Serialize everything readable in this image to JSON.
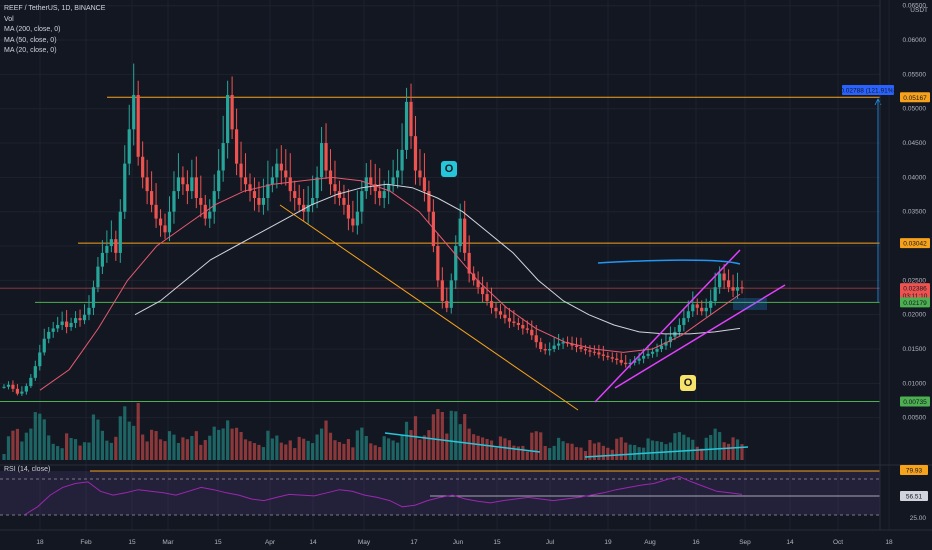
{
  "legend": {
    "symbol": "REEF / TetherUS, 1D, BINANCE",
    "vol": "Vol",
    "ma200": "MA (200, close, 0)",
    "ma50": "MA (50, close, 0)",
    "ma20": "MA (20, close, 0)",
    "rsi": "RSI (14, close)"
  },
  "snapshot_badges": [
    "O",
    "O"
  ],
  "colors": {
    "background": "#131722",
    "up": "#26a69a",
    "down": "#ef5350",
    "grid": "#1e222d",
    "axis_text": "#b2b5be",
    "orange_line": "#f7a21b",
    "green_line": "#4caf50",
    "ma200": "#d1d4dc",
    "ma50": "#e65a6e",
    "pink_trend": "#e040fb",
    "blue_line": "#2196f3",
    "cyan_line": "#26c6da",
    "rsi_line": "#9c27b0"
  },
  "chart_data": {
    "type": "candlestick",
    "title": "REEF / TetherUS, 1D, BINANCE",
    "price_axis_unit": "USDT",
    "price_ticks": [
      "0.06500",
      "0.06000",
      "0.05500",
      "0.05000",
      "0.04500",
      "0.04000",
      "0.03500",
      "0.03000",
      "0.02500",
      "0.02000",
      "0.01500",
      "0.01000",
      "0.00500"
    ],
    "price_tick_values": [
      0.065,
      0.06,
      0.055,
      0.05,
      0.045,
      0.04,
      0.035,
      0.03,
      0.025,
      0.02,
      0.015,
      0.01,
      0.005
    ],
    "date_ticks": [
      "18",
      "Feb",
      "15",
      "Mar",
      "15",
      "Apr",
      "14",
      "May",
      "17",
      "Jun",
      "15",
      "Jul",
      "19",
      "Aug",
      "16",
      "Sep",
      "14",
      "Oct",
      "18"
    ],
    "rsi_ticks": [
      "25.00"
    ],
    "price_labels": [
      {
        "text": "0.02788 (121.91%)",
        "value": 0.0525,
        "color": "#2962ff"
      },
      {
        "text": "0.05167",
        "value": 0.05167,
        "color": "#f7a21b"
      },
      {
        "text": "0.03042",
        "value": 0.03042,
        "color": "#f7a21b"
      },
      {
        "text": "0.02386",
        "value": 0.02386,
        "color": "#ef5350"
      },
      {
        "text": "03:11:10",
        "value": 0.0228,
        "color": "#ef5350"
      },
      {
        "text": "0.02179",
        "value": 0.02179,
        "color": "#4caf50"
      },
      {
        "text": "0.00735",
        "value": 0.00735,
        "color": "#4caf50"
      }
    ],
    "rsi_labels": [
      {
        "text": "79.93",
        "value": 79.93,
        "color": "#f7a21b"
      },
      {
        "text": "56.51",
        "value": 56.51,
        "color": "#d1d4dc"
      }
    ],
    "horizontal_levels": [
      {
        "value": 0.05167,
        "color": "#f7a21b"
      },
      {
        "value": 0.03042,
        "color": "#f7a21b"
      },
      {
        "value": 0.02386,
        "color": "#ef5350"
      },
      {
        "value": 0.02179,
        "color": "#4caf50"
      },
      {
        "value": 0.00735,
        "color": "#4caf50"
      }
    ],
    "series": [
      {
        "name": "Close",
        "values": [
          0.0095,
          0.0098,
          0.0092,
          0.0085,
          0.0088,
          0.0096,
          0.0108,
          0.0125,
          0.0145,
          0.0165,
          0.0175,
          0.018,
          0.0185,
          0.019,
          0.0182,
          0.0188,
          0.0195,
          0.0192,
          0.02,
          0.021,
          0.024,
          0.027,
          0.029,
          0.03,
          0.031,
          0.029,
          0.035,
          0.042,
          0.047,
          0.052,
          0.043,
          0.04,
          0.038,
          0.036,
          0.034,
          0.033,
          0.032,
          0.035,
          0.038,
          0.04,
          0.039,
          0.038,
          0.04,
          0.037,
          0.036,
          0.034,
          0.035,
          0.038,
          0.041,
          0.045,
          0.052,
          0.047,
          0.042,
          0.04,
          0.039,
          0.038,
          0.037,
          0.036,
          0.037,
          0.039,
          0.04,
          0.042,
          0.041,
          0.04,
          0.038,
          0.037,
          0.036,
          0.035,
          0.036,
          0.037,
          0.04,
          0.045,
          0.041,
          0.039,
          0.038,
          0.037,
          0.036,
          0.034,
          0.033,
          0.035,
          0.038,
          0.04,
          0.039,
          0.038,
          0.037,
          0.038,
          0.039,
          0.04,
          0.041,
          0.044,
          0.051,
          0.046,
          0.041,
          0.04,
          0.038,
          0.035,
          0.03,
          0.025,
          0.022,
          0.021,
          0.025,
          0.03,
          0.034,
          0.029,
          0.026,
          0.025,
          0.024,
          0.023,
          0.022,
          0.021,
          0.0205,
          0.02,
          0.0195,
          0.019,
          0.0188,
          0.0185,
          0.018,
          0.0178,
          0.017,
          0.016,
          0.015,
          0.0148,
          0.015,
          0.0155,
          0.0158,
          0.016,
          0.0158,
          0.0155,
          0.0153,
          0.015,
          0.0148,
          0.0146,
          0.0145,
          0.0142,
          0.014,
          0.0138,
          0.0136,
          0.0134,
          0.013,
          0.0128,
          0.013,
          0.0133,
          0.0136,
          0.014,
          0.0143,
          0.0146,
          0.015,
          0.0155,
          0.016,
          0.0168,
          0.0175,
          0.0185,
          0.0195,
          0.0205,
          0.0215,
          0.021,
          0.0205,
          0.021,
          0.022,
          0.024,
          0.026,
          0.025,
          0.024,
          0.0235,
          0.024,
          0.0238
        ]
      },
      {
        "name": "MA (200, close, 0)",
        "values": [
          0.02,
          0.022,
          0.025,
          0.028,
          0.03,
          0.032,
          0.034,
          0.036,
          0.0375,
          0.0385,
          0.039,
          0.0385,
          0.037,
          0.035,
          0.032,
          0.029,
          0.025,
          0.022,
          0.02,
          0.0185,
          0.0175,
          0.0172,
          0.0172,
          0.0175,
          0.018
        ]
      },
      {
        "name": "MA (50, close, 0)",
        "values": [
          0.009,
          0.012,
          0.018,
          0.025,
          0.03,
          0.033,
          0.036,
          0.038,
          0.039,
          0.0395,
          0.04,
          0.0395,
          0.038,
          0.035,
          0.03,
          0.025,
          0.021,
          0.018,
          0.016,
          0.015,
          0.0145,
          0.015,
          0.017,
          0.02,
          0.023
        ]
      },
      {
        "name": "RSI (14, close)",
        "values": [
          30,
          40,
          55,
          65,
          70,
          72,
          60,
          55,
          58,
          62,
          60,
          58,
          55,
          60,
          65,
          62,
          58,
          55,
          50,
          48,
          52,
          56,
          55,
          54,
          58,
          62,
          60,
          55,
          52,
          48,
          40,
          42,
          48,
          52,
          55,
          50,
          47,
          45,
          48,
          50,
          52,
          50,
          48,
          50,
          52,
          55,
          58,
          62,
          65,
          68,
          70,
          75,
          79,
          72,
          66,
          60,
          58,
          56
        ]
      }
    ]
  }
}
